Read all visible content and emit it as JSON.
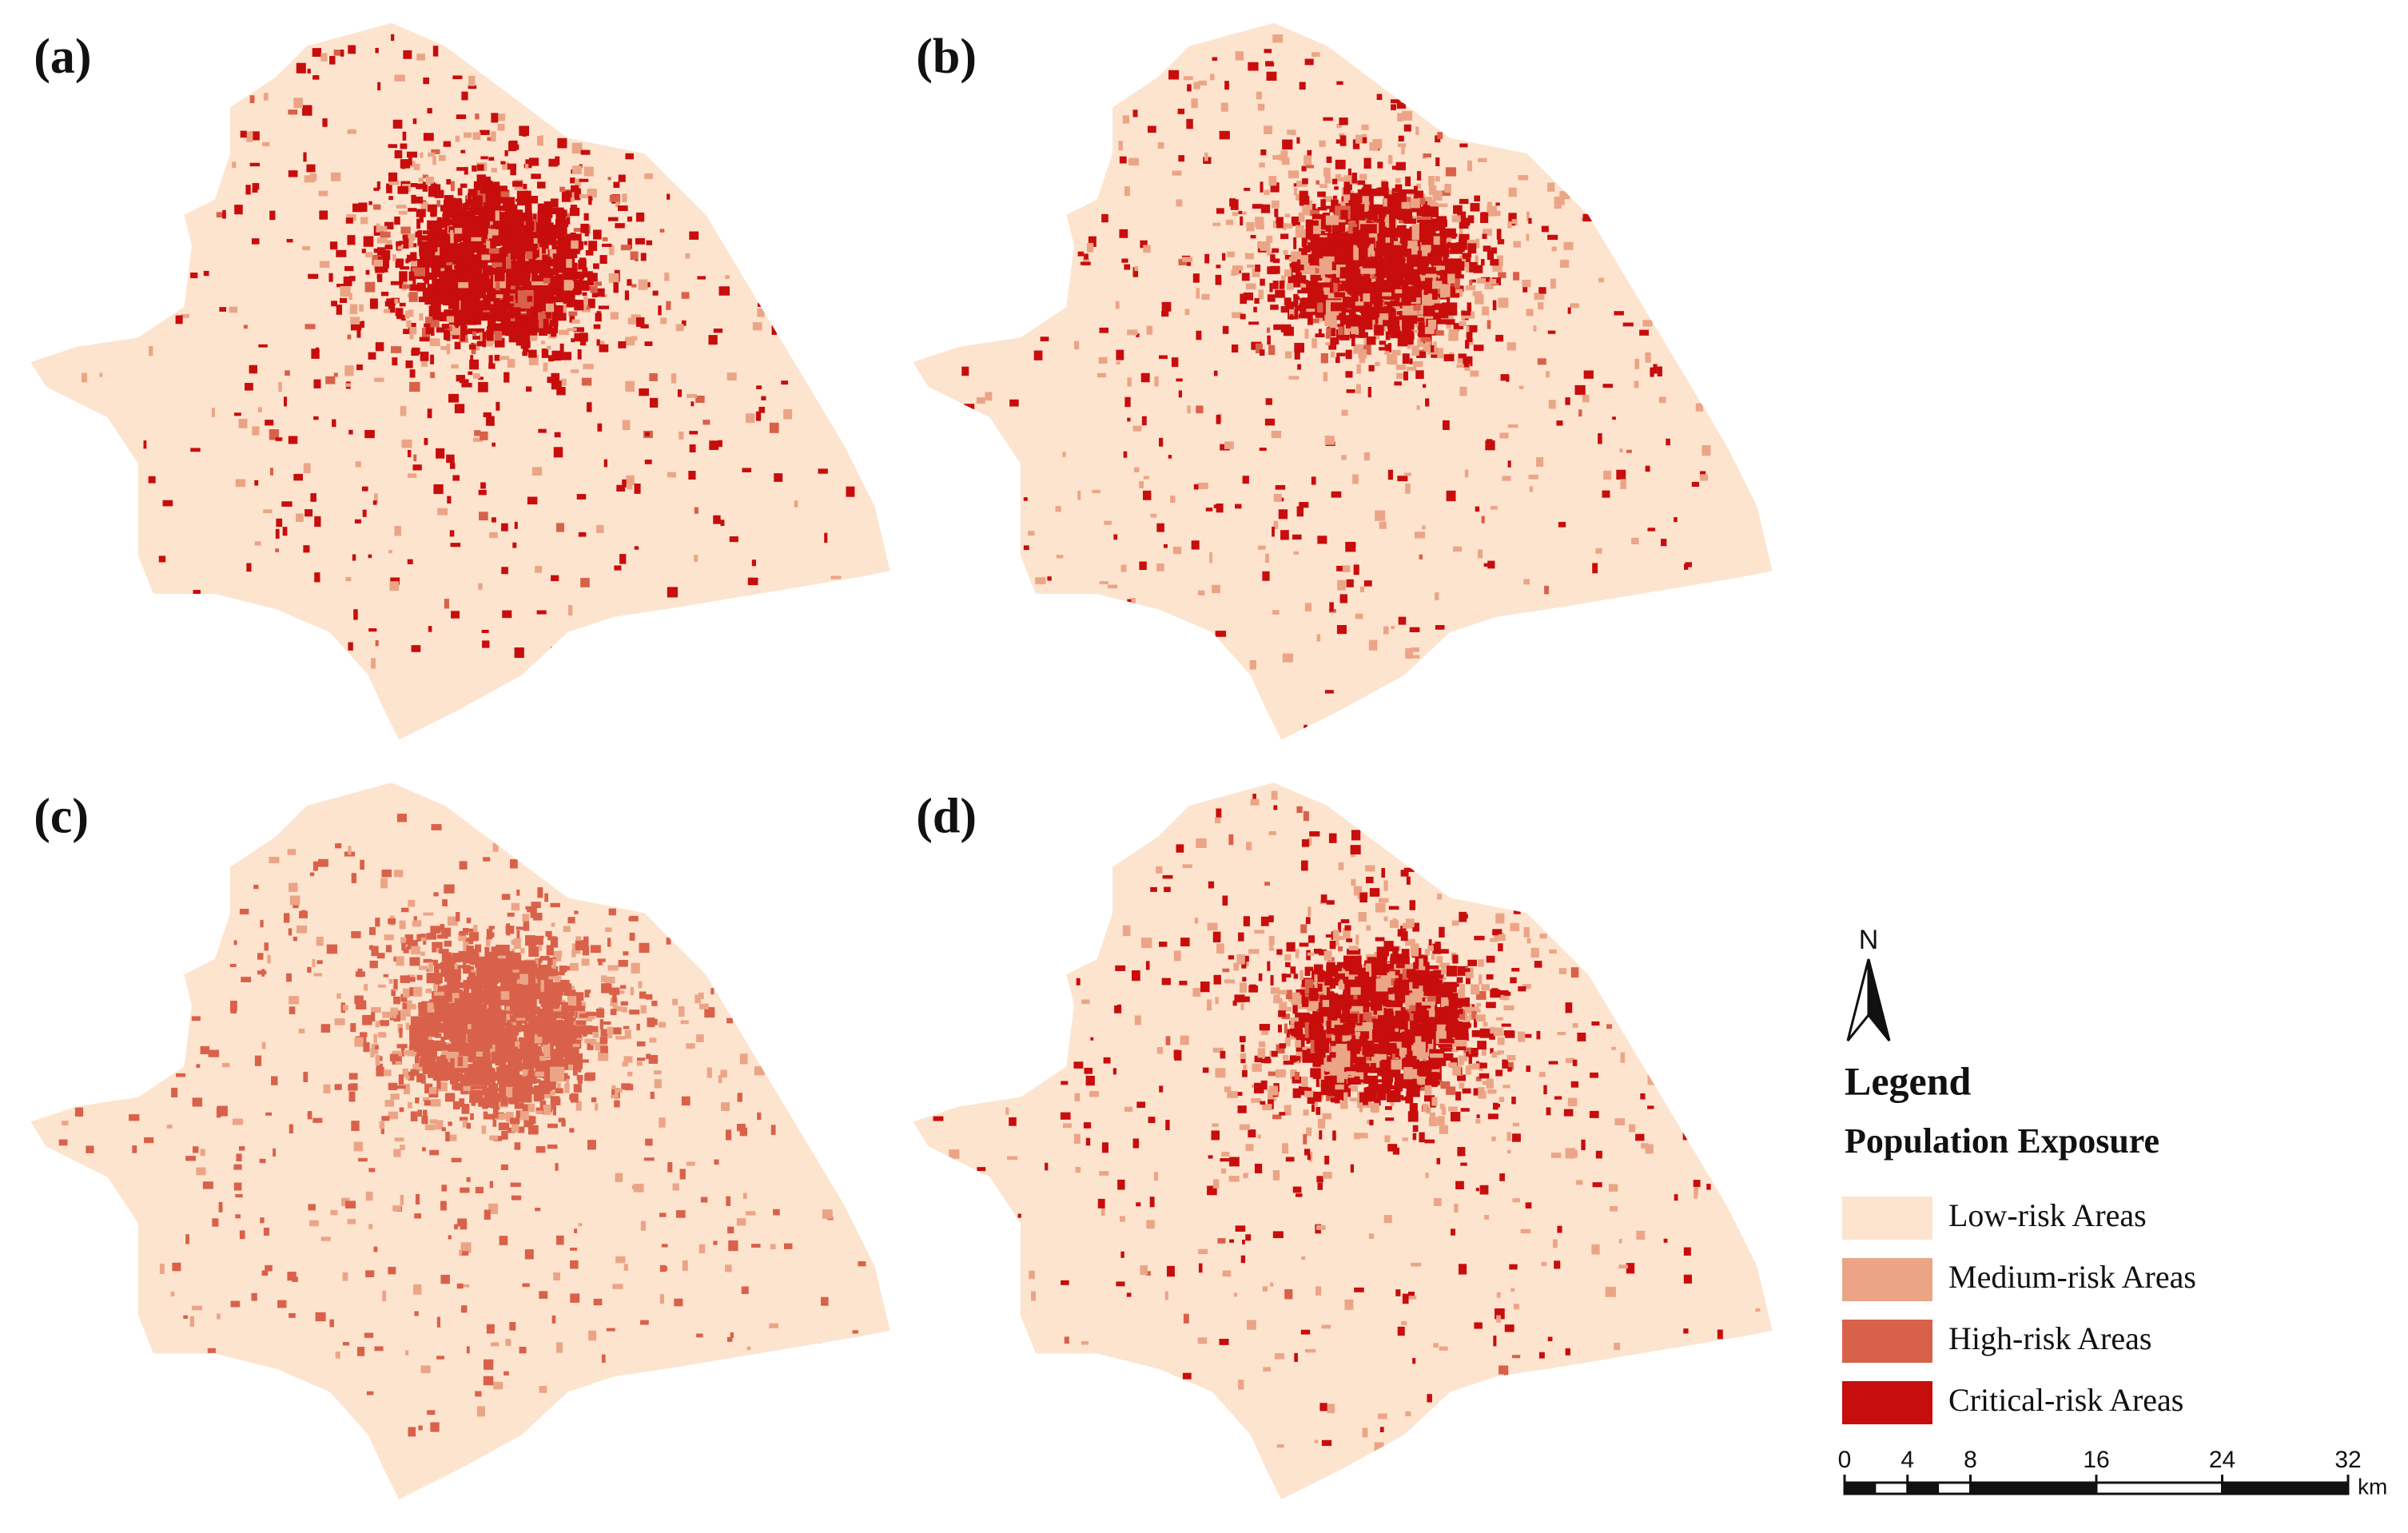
{
  "panels": [
    {
      "label": "(a)"
    },
    {
      "label": "(b)"
    },
    {
      "label": "(c)"
    },
    {
      "label": "(d)"
    }
  ],
  "north_arrow": {
    "label": "N"
  },
  "legend": {
    "title": "Legend",
    "subtitle": "Population Exposure",
    "items": [
      {
        "label": "Low-risk Areas",
        "color": "#fde4cf"
      },
      {
        "label": "Medium-risk Areas",
        "color": "#eba586"
      },
      {
        "label": "High-risk Areas",
        "color": "#d9614a"
      },
      {
        "label": "Critical-risk Areas",
        "color": "#c80d0d"
      }
    ]
  },
  "scale_bar": {
    "range": [
      0,
      32
    ],
    "ticks": [
      0,
      4,
      8,
      16,
      24,
      32
    ],
    "unit": "km"
  }
}
